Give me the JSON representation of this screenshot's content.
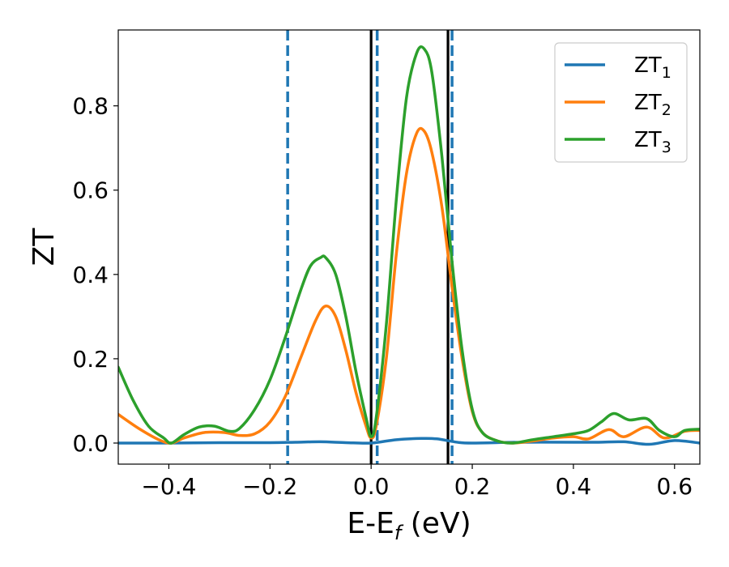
{
  "chart_data": {
    "type": "line",
    "title": "",
    "xlabel": "E-E",
    "xlabel_sub": "f",
    "xlabel_unit": " (eV)",
    "ylabel": "ZT",
    "xlim": [
      -0.5,
      0.65
    ],
    "ylim": [
      -0.05,
      0.98
    ],
    "xticks": [
      -0.4,
      -0.2,
      0.0,
      0.2,
      0.4,
      0.6
    ],
    "xtick_labels": [
      "−0.4",
      "−0.2",
      "0.0",
      "0.2",
      "0.4",
      "0.6"
    ],
    "yticks": [
      0.0,
      0.2,
      0.4,
      0.6,
      0.8
    ],
    "ytick_labels": [
      "0.0",
      "0.2",
      "0.4",
      "0.6",
      "0.8"
    ],
    "grid": false,
    "legend_position": "top-right",
    "vlines": [
      {
        "x": -0.165,
        "style": "dashed",
        "color": "#1f77b4"
      },
      {
        "x": 0.012,
        "style": "dashed",
        "color": "#1f77b4"
      },
      {
        "x": 0.16,
        "style": "dashed",
        "color": "#1f77b4"
      },
      {
        "x": 0.0,
        "style": "solid",
        "color": "#000000"
      },
      {
        "x": 0.152,
        "style": "solid",
        "color": "#000000"
      }
    ],
    "series": [
      {
        "name": "ZT",
        "name_sub": "1",
        "color": "#1f77b4",
        "x": [
          -0.5,
          -0.4,
          -0.3,
          -0.2,
          -0.15,
          -0.1,
          -0.05,
          0.0,
          0.05,
          0.1,
          0.13,
          0.17,
          0.2,
          0.3,
          0.4,
          0.45,
          0.5,
          0.55,
          0.6,
          0.65
        ],
        "y": [
          0.0,
          0.0,
          0.001,
          0.001,
          0.002,
          0.003,
          0.001,
          0.0,
          0.008,
          0.011,
          0.01,
          0.002,
          0.0,
          0.002,
          0.002,
          0.002,
          0.003,
          -0.003,
          0.006,
          0.0
        ]
      },
      {
        "name": "ZT",
        "name_sub": "2",
        "color": "#ff7f0e",
        "x": [
          -0.5,
          -0.46,
          -0.42,
          -0.395,
          -0.37,
          -0.33,
          -0.29,
          -0.26,
          -0.23,
          -0.2,
          -0.17,
          -0.14,
          -0.11,
          -0.09,
          -0.07,
          -0.05,
          -0.03,
          -0.01,
          0.0,
          0.01,
          0.03,
          0.05,
          0.07,
          0.09,
          0.105,
          0.12,
          0.14,
          0.16,
          0.18,
          0.2,
          0.22,
          0.25,
          0.28,
          0.32,
          0.36,
          0.4,
          0.43,
          0.47,
          0.5,
          0.545,
          0.58,
          0.62,
          0.65
        ],
        "y": [
          0.068,
          0.035,
          0.008,
          0.0,
          0.012,
          0.025,
          0.025,
          0.018,
          0.022,
          0.05,
          0.11,
          0.2,
          0.29,
          0.325,
          0.3,
          0.22,
          0.12,
          0.04,
          0.012,
          0.04,
          0.2,
          0.45,
          0.64,
          0.735,
          0.74,
          0.69,
          0.56,
          0.37,
          0.2,
          0.075,
          0.025,
          0.005,
          0.0,
          0.005,
          0.012,
          0.015,
          0.01,
          0.032,
          0.015,
          0.038,
          0.012,
          0.028,
          0.03
        ]
      },
      {
        "name": "ZT",
        "name_sub": "3",
        "color": "#2ca02c",
        "x": [
          -0.5,
          -0.47,
          -0.44,
          -0.41,
          -0.395,
          -0.37,
          -0.34,
          -0.31,
          -0.28,
          -0.26,
          -0.23,
          -0.2,
          -0.17,
          -0.14,
          -0.12,
          -0.1,
          -0.09,
          -0.07,
          -0.05,
          -0.03,
          -0.01,
          0.0,
          0.01,
          0.03,
          0.05,
          0.07,
          0.09,
          0.105,
          0.12,
          0.14,
          0.16,
          0.18,
          0.2,
          0.22,
          0.25,
          0.28,
          0.32,
          0.36,
          0.4,
          0.43,
          0.455,
          0.48,
          0.51,
          0.545,
          0.57,
          0.6,
          0.62,
          0.65
        ],
        "y": [
          0.18,
          0.1,
          0.04,
          0.012,
          0.0,
          0.02,
          0.038,
          0.04,
          0.028,
          0.035,
          0.08,
          0.15,
          0.25,
          0.36,
          0.42,
          0.44,
          0.44,
          0.4,
          0.3,
          0.17,
          0.06,
          0.015,
          0.06,
          0.28,
          0.58,
          0.82,
          0.925,
          0.935,
          0.88,
          0.68,
          0.43,
          0.22,
          0.08,
          0.025,
          0.005,
          0.0,
          0.008,
          0.015,
          0.022,
          0.03,
          0.05,
          0.07,
          0.055,
          0.058,
          0.03,
          0.015,
          0.03,
          0.033
        ]
      }
    ]
  }
}
